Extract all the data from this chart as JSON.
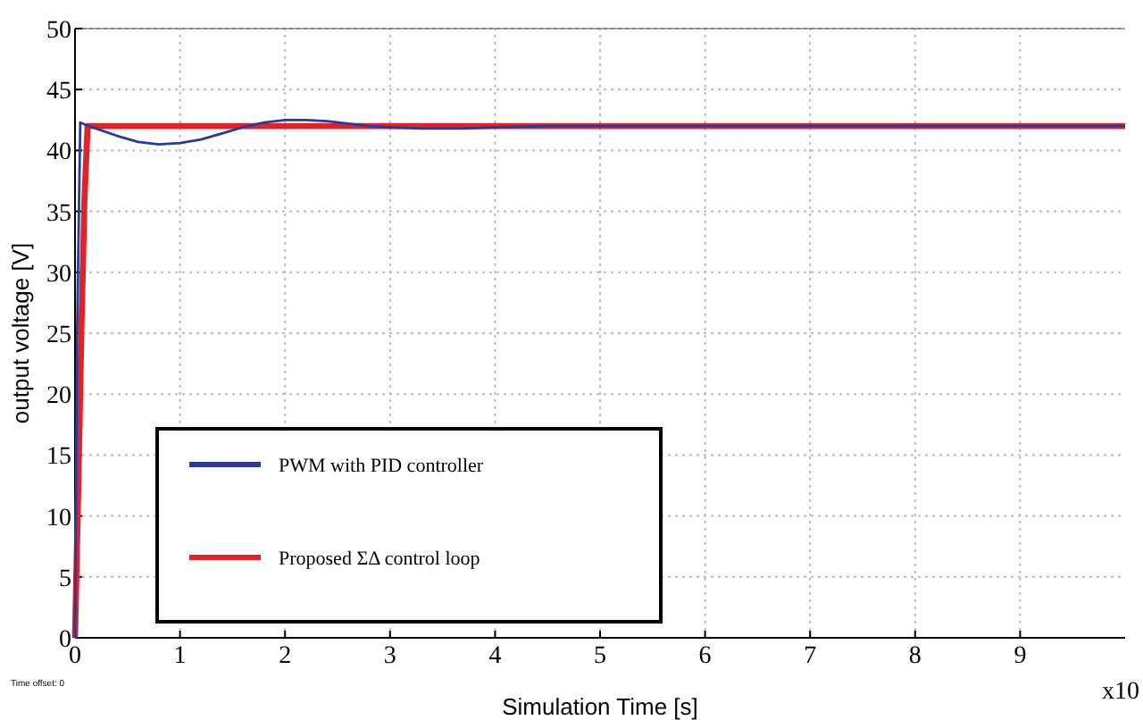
{
  "chart_data": {
    "type": "line",
    "xlabel": "Simulation Time [s]",
    "ylabel": "output voltage [V]",
    "xlim": [
      0,
      10
    ],
    "ylim": [
      0,
      50
    ],
    "xticks": [
      0,
      1,
      2,
      3,
      4,
      5,
      6,
      7,
      8,
      9
    ],
    "yticks": [
      0,
      5,
      10,
      15,
      20,
      25,
      30,
      35,
      40,
      45,
      50
    ],
    "grid": true,
    "legend": "bottom left",
    "line_style": "solid",
    "marker": "none",
    "annotations": [
      "Time offset: 0",
      "x10"
    ],
    "series": [
      {
        "name": "PWM with PID controller",
        "color": "#2b3a9a",
        "x": [
          0,
          0.02,
          0.05,
          0.1,
          0.2,
          0.4,
          0.6,
          0.8,
          1.0,
          1.2,
          1.4,
          1.6,
          1.8,
          2.0,
          2.2,
          2.4,
          2.6,
          2.8,
          3.0,
          3.3,
          3.7,
          4.0,
          4.5,
          5,
          6,
          7,
          8,
          9,
          10
        ],
        "values": [
          0,
          25,
          42.3,
          42.1,
          41.8,
          41.2,
          40.7,
          40.5,
          40.6,
          40.9,
          41.4,
          41.9,
          42.3,
          42.5,
          42.5,
          42.4,
          42.2,
          42,
          41.9,
          41.8,
          41.8,
          41.9,
          42,
          42,
          42,
          42,
          42,
          42,
          42
        ]
      },
      {
        "name": "Proposed ΣΔ control loop",
        "color": "#d9262b",
        "x": [
          0,
          0.03,
          0.06,
          0.09,
          0.12,
          0.2,
          1,
          2,
          3,
          4,
          5,
          6,
          7,
          8,
          9,
          10
        ],
        "values": [
          0,
          12,
          25,
          36,
          42,
          42,
          42,
          42,
          42,
          42,
          42,
          42,
          42,
          42,
          42,
          42
        ]
      }
    ]
  }
}
